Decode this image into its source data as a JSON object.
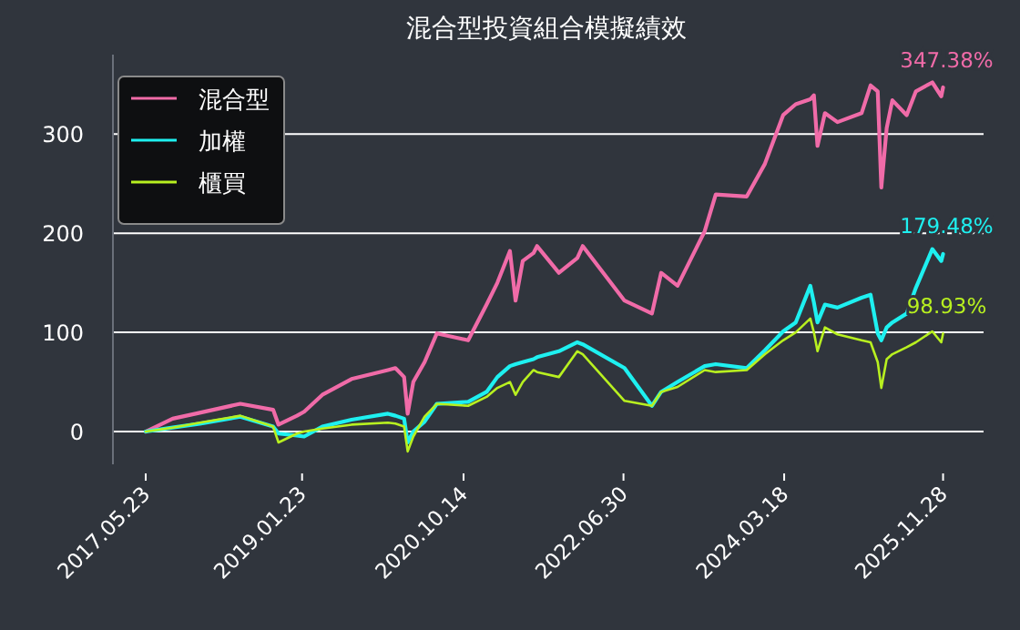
{
  "chart_data": {
    "type": "line",
    "title": "混合型投資組合模擬績效",
    "x": [
      "2017-05-23",
      "2017-09-05",
      "2017-12-20",
      "2018-05-27",
      "2018-10-02",
      "2018-10-23",
      "2019-01-03",
      "2019-01-31",
      "2019-04-12",
      "2019-08-04",
      "2019-12-24",
      "2020-01-22",
      "2020-02-25",
      "2020-03-10",
      "2020-04-01",
      "2020-05-15",
      "2020-07-02",
      "2020-11-01",
      "2021-01-12",
      "2021-02-23",
      "2021-04-13",
      "2021-05-05",
      "2021-06-02",
      "2021-07-14",
      "2021-07-28",
      "2021-10-21",
      "2022-01-01",
      "2022-01-22",
      "2022-07-04",
      "2022-10-19",
      "2022-11-24",
      "2023-01-27",
      "2023-05-13",
      "2023-06-25",
      "2023-10-24",
      "2024-01-03",
      "2024-03-14",
      "2024-05-02",
      "2024-06-28",
      "2024-07-12",
      "2024-07-26",
      "2024-08-24",
      "2024-10-12",
      "2025-01-14",
      "2025-02-18",
      "2025-03-18",
      "2025-04-01",
      "2025-04-22",
      "2025-05-14",
      "2025-07-09",
      "2025-08-14",
      "2025-10-17",
      "2025-11-21",
      "2025-11-28"
    ],
    "series": [
      {
        "name": "混合型",
        "color": "#f06ba8",
        "values": [
          0,
          13,
          19,
          28,
          22,
          7,
          16,
          20,
          37,
          53,
          62,
          64,
          55,
          18,
          50,
          70,
          99,
          92,
          128,
          150,
          182,
          132,
          172,
          180,
          187,
          160,
          175,
          187,
          132,
          119,
          160,
          147,
          202,
          239,
          237,
          270,
          319,
          330,
          335,
          339,
          288,
          321,
          312,
          321,
          349,
          343,
          246,
          306,
          334,
          319,
          343,
          352,
          338,
          347
        ]
      },
      {
        "name": "加權",
        "color": "#1ef0f0",
        "values": [
          0,
          4,
          8,
          15,
          5,
          -2,
          -4,
          -5,
          5,
          12,
          18,
          16,
          13,
          -11,
          0,
          10,
          28,
          30,
          40,
          55,
          66,
          68,
          70,
          73,
          75,
          81,
          90,
          88,
          64,
          26,
          40,
          50,
          66,
          68,
          64,
          82,
          101,
          110,
          147,
          130,
          110,
          128,
          125,
          135,
          138,
          99,
          92,
          105,
          110,
          119,
          145,
          184,
          172,
          179
        ]
      },
      {
        "name": "櫃買",
        "color": "#b8f020",
        "values": [
          0,
          4,
          9,
          16,
          5,
          -11,
          -2,
          0,
          3,
          7,
          9,
          8,
          5,
          -20,
          -5,
          15,
          28,
          26,
          35,
          44,
          50,
          37,
          50,
          62,
          60,
          55,
          81,
          78,
          31,
          26,
          40,
          45,
          62,
          60,
          62,
          78,
          92,
          100,
          114,
          100,
          81,
          105,
          98,
          92,
          90,
          70,
          44,
          73,
          78,
          85,
          90,
          101,
          90,
          99
        ]
      }
    ],
    "annotations": [
      {
        "text": "347.38%",
        "x": "2025-11-28",
        "y": 347.38
      },
      {
        "text": "179.48%",
        "x": "2025-11-28",
        "y": 179.48
      },
      {
        "text": "98.93%",
        "x": "2025-11-28",
        "y": 98.93
      }
    ],
    "xlim": [
      "2017-01-15",
      "2026-05-05"
    ],
    "xticks": [
      {
        "value": "2017-05-23",
        "label": "2017.05.23"
      },
      {
        "value": "2019-01-23",
        "label": "2019.01.23"
      },
      {
        "value": "2020-10-14",
        "label": "2020.10.14"
      },
      {
        "value": "2022-06-30",
        "label": "2022.06.30"
      },
      {
        "value": "2024-03-18",
        "label": "2024.03.18"
      },
      {
        "value": "2025-11-28",
        "label": "2025.11.28"
      }
    ],
    "ylim": [
      -33,
      380
    ],
    "yticks": [
      0,
      100,
      200,
      300
    ],
    "grid": "y",
    "legend": "top left",
    "marker": "none",
    "line_style": "solid"
  }
}
